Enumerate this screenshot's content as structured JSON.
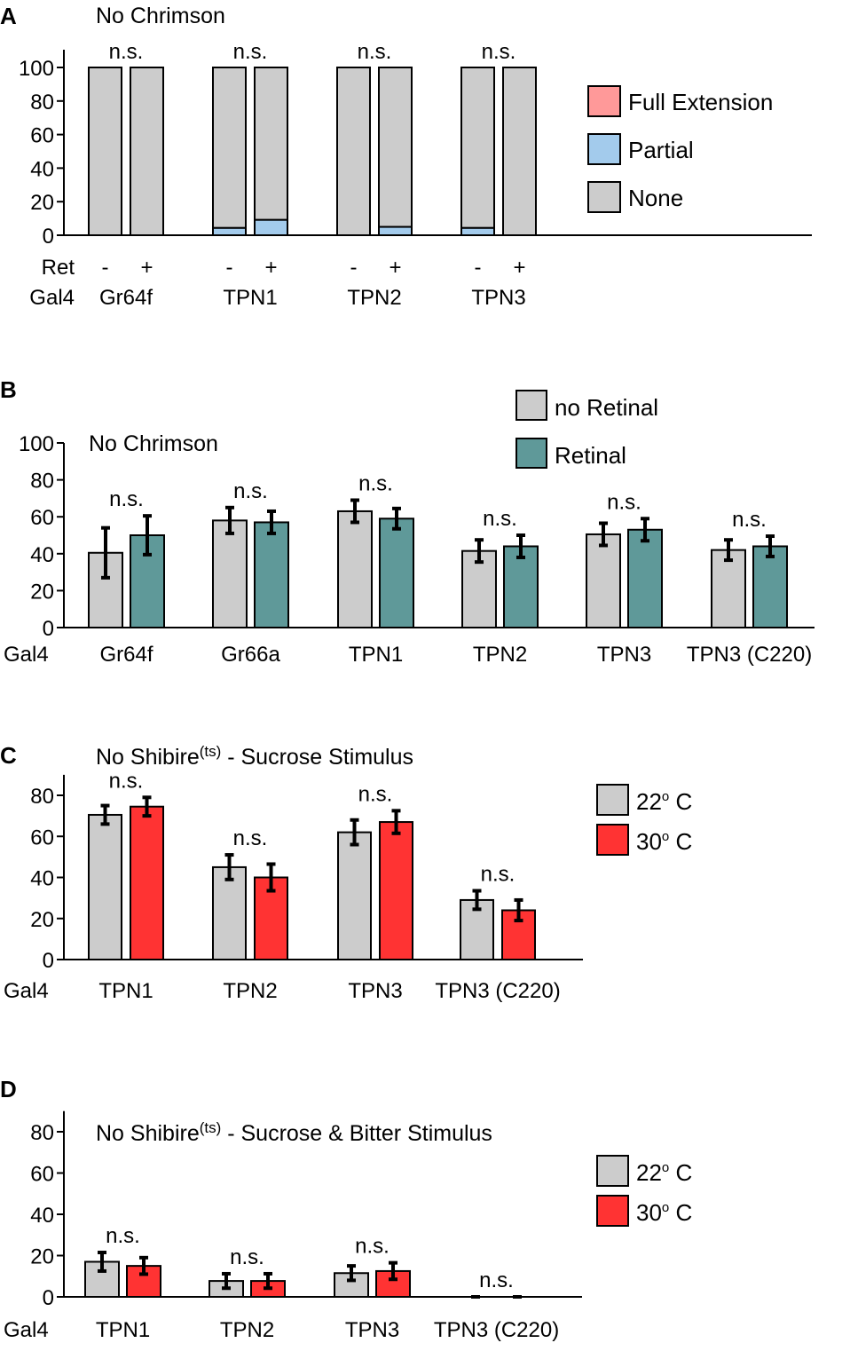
{
  "colors": {
    "none": "#cccccc",
    "partial": "#a3cbec",
    "full_extension": "#ff9999",
    "no_retinal": "#cccccc",
    "retinal": "#5f9999",
    "temp_22": "#cccccc",
    "temp_30": "#ff3333"
  },
  "chart_data": [
    {
      "panel": "A",
      "type": "bar",
      "stacked": true,
      "title": "No Chrimson",
      "ylim": [
        0,
        100
      ],
      "yticks": [
        0,
        20,
        40,
        60,
        80,
        100
      ],
      "row_labels": {
        "ret": "Ret",
        "gal4": "Gal4"
      },
      "groups": [
        "Gr64f",
        "TPN1",
        "TPN2",
        "TPN3"
      ],
      "bar_labels": [
        "-",
        "+"
      ],
      "significance": [
        "n.s.",
        "n.s.",
        "n.s.",
        "n.s."
      ],
      "series": [
        {
          "name": "Full Extension",
          "color_key": "full_extension",
          "values": [
            [
              0,
              0
            ],
            [
              0,
              0
            ],
            [
              0,
              0
            ],
            [
              0,
              0
            ]
          ]
        },
        {
          "name": "Partial",
          "color_key": "partial",
          "values": [
            [
              0,
              0
            ],
            [
              4.4,
              9.2
            ],
            [
              0,
              5
            ],
            [
              4.4,
              0
            ]
          ]
        },
        {
          "name": "None",
          "color_key": "none",
          "values": [
            [
              100,
              100
            ],
            [
              95.6,
              90.8
            ],
            [
              100,
              95
            ],
            [
              95.6,
              100
            ]
          ]
        }
      ],
      "legend": [
        "Full Extension",
        "Partial",
        "None"
      ],
      "legend_placement": "right"
    },
    {
      "panel": "B",
      "type": "bar",
      "title": "No Chrimson",
      "ylim": [
        0,
        100
      ],
      "yticks": [
        0,
        20,
        40,
        60,
        80,
        100
      ],
      "xlabel_prefix": "Gal4",
      "categories": [
        "Gr64f",
        "Gr66a",
        "TPN1",
        "TPN2",
        "TPN3",
        "TPN3 (C220)"
      ],
      "significance": [
        "n.s.",
        "n.s.",
        "n.s.",
        "n.s.",
        "n.s.",
        "n.s."
      ],
      "series": [
        {
          "name": "no Retinal",
          "color_key": "no_retinal",
          "values": [
            40.5,
            58,
            63,
            41.5,
            50.5,
            42
          ],
          "errors": [
            13.5,
            7,
            6,
            6,
            6,
            5.5
          ]
        },
        {
          "name": "Retinal",
          "color_key": "retinal",
          "values": [
            50,
            57,
            59,
            44,
            53,
            44
          ],
          "errors": [
            10.5,
            6,
            5.5,
            6,
            6,
            5.5
          ]
        }
      ],
      "legend": [
        "no Retinal",
        "Retinal"
      ],
      "legend_placement": "top-right"
    },
    {
      "panel": "C",
      "type": "bar",
      "title": "No Shibire",
      "title_superscript": "(ts)",
      "title_suffix": " - Sucrose Stimulus",
      "ylim": [
        0,
        90
      ],
      "yticks": [
        0,
        20,
        40,
        60,
        80
      ],
      "xlabel_prefix": "Gal4",
      "categories": [
        "TPN1",
        "TPN2",
        "TPN3",
        "TPN3  (C220)"
      ],
      "significance": [
        "n.s.",
        "n.s.",
        "n.s.",
        "n.s."
      ],
      "series": [
        {
          "name": "22° C",
          "color_key": "temp_22",
          "values": [
            70.5,
            45,
            62,
            29
          ],
          "errors": [
            4.5,
            6,
            6,
            4.5
          ]
        },
        {
          "name": "30° C",
          "color_key": "temp_30",
          "values": [
            74.5,
            40,
            67,
            24
          ],
          "errors": [
            4.5,
            6.5,
            5.5,
            5
          ]
        }
      ],
      "legend": [
        {
          "num": "22",
          "sup": "o",
          "unit": " C"
        },
        {
          "num": "30",
          "sup": "o",
          "unit": " C"
        }
      ],
      "legend_placement": "right"
    },
    {
      "panel": "D",
      "type": "bar",
      "title": "No Shibire",
      "title_superscript": "(ts)",
      "title_suffix": " - Sucrose & Bitter Stimulus",
      "ylim": [
        0,
        90
      ],
      "yticks": [
        0,
        20,
        40,
        60,
        80
      ],
      "xlabel_prefix": "Gal4",
      "categories": [
        "TPN1",
        "TPN2",
        "TPN3",
        "TPN3  (C220)"
      ],
      "significance": [
        "n.s.",
        "n.s.",
        "n.s.",
        "n.s."
      ],
      "series": [
        {
          "name": "22° C",
          "color_key": "temp_22",
          "values": [
            17,
            7.7,
            11.5,
            0
          ],
          "errors": [
            4.5,
            3.5,
            3.5,
            0
          ]
        },
        {
          "name": "30° C",
          "color_key": "temp_30",
          "values": [
            15,
            7.7,
            12.5,
            0
          ],
          "errors": [
            4,
            3.5,
            4,
            0
          ]
        }
      ],
      "legend": [
        {
          "num": "22",
          "sup": "o",
          "unit": " C"
        },
        {
          "num": "30",
          "sup": "o",
          "unit": " C"
        }
      ],
      "legend_placement": "right"
    }
  ]
}
